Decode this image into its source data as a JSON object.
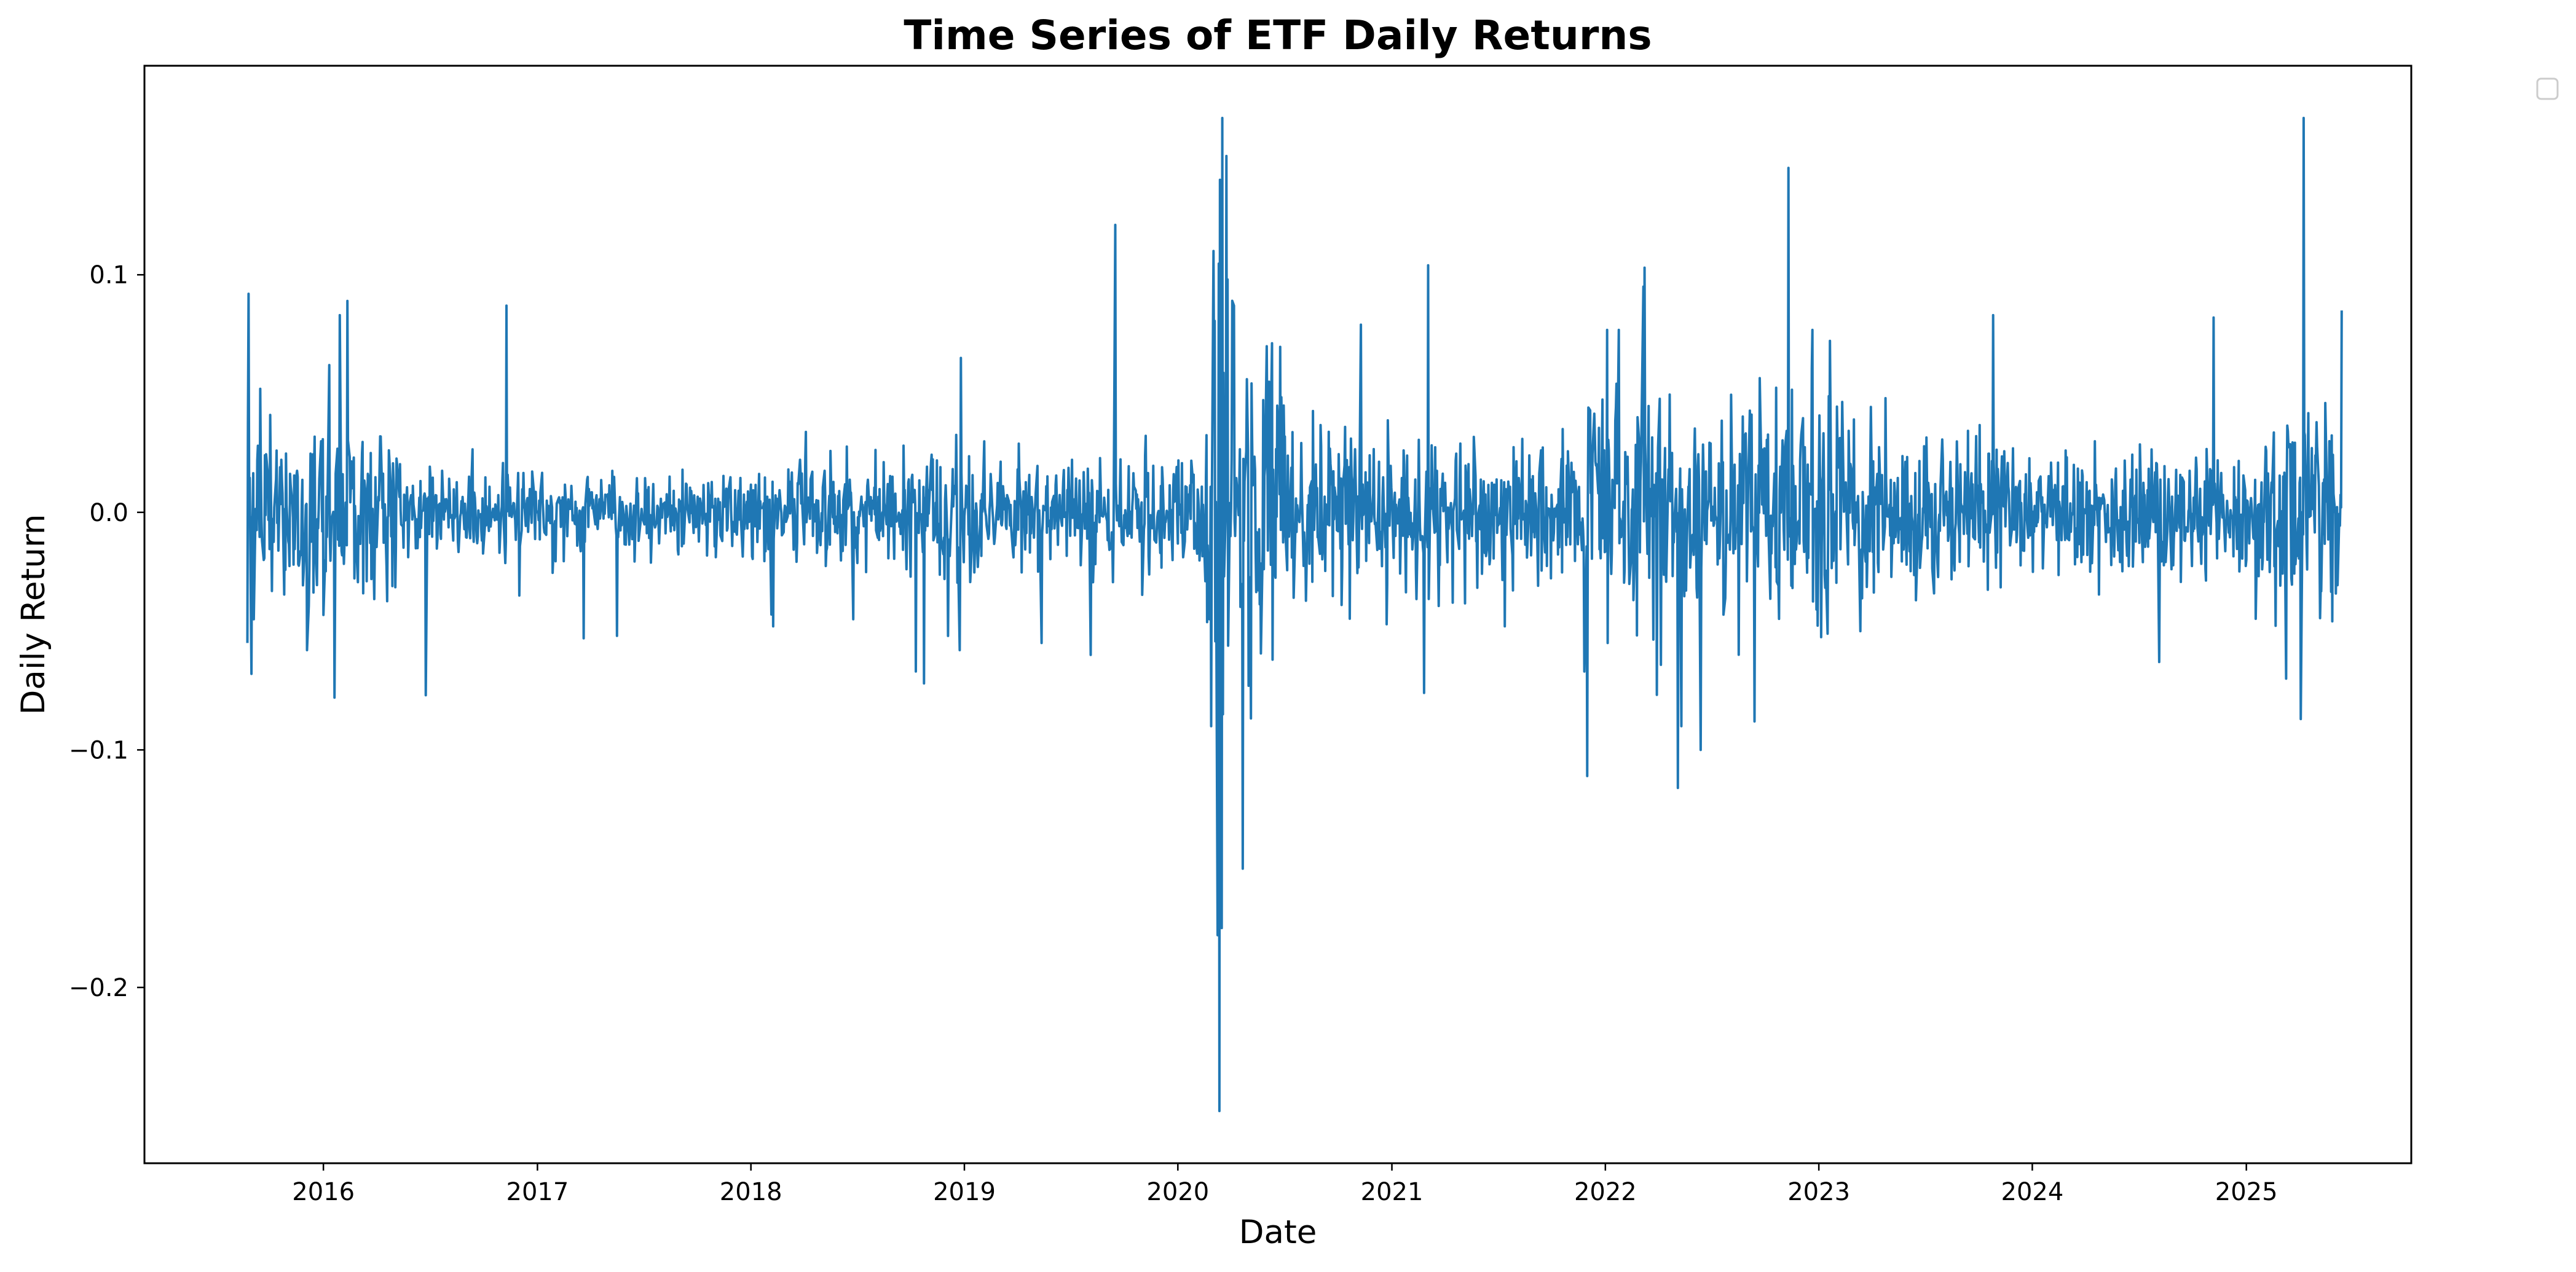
{
  "chart_data": {
    "type": "line",
    "title": "Time Series of ETF Daily Returns",
    "xlabel": "Date",
    "ylabel": "Daily Return",
    "xlim": [
      "2015-03-01",
      "2025-10-10"
    ],
    "ylim": [
      -0.274,
      0.188
    ],
    "x_ticks": [
      "2016",
      "2017",
      "2018",
      "2019",
      "2020",
      "2021",
      "2022",
      "2023",
      "2024",
      "2025"
    ],
    "y_ticks": [
      "0.1",
      "0.0",
      "−0.1",
      "−0.2"
    ],
    "y_tick_values": [
      0.1,
      0.0,
      -0.1,
      -0.2
    ],
    "date_range": [
      "2015-08-24",
      "2025-06-13"
    ],
    "grid": false,
    "legend": {
      "position": "upper-right-outside",
      "entries": []
    },
    "series": [
      {
        "color": "#1f77b4",
        "x": [
          "2015-08-24",
          "2015-08-25",
          "2015-08-26",
          "2015-08-31",
          "2015-09-04",
          "2015-09-15",
          "2015-10-02",
          "2015-12-04",
          "2016-01-11",
          "2016-01-20",
          "2016-01-29",
          "2016-02-11",
          "2016-06-24",
          "2016-11-09",
          "2016-12-01",
          "2017-03-21",
          "2017-05-17",
          "2018-02-05",
          "2018-02-08",
          "2018-06-25",
          "2018-10-10",
          "2018-10-24",
          "2018-12-04",
          "2018-12-24",
          "2018-12-26",
          "2019-05-13",
          "2019-08-05",
          "2019-09-16",
          "2020-02-24",
          "2020-02-27",
          "2020-03-02",
          "2020-03-09",
          "2020-03-12",
          "2020-03-13",
          "2020-03-16",
          "2020-03-17",
          "2020-03-18",
          "2020-03-24",
          "2020-03-26",
          "2020-04-06",
          "2020-04-21",
          "2020-05-01",
          "2020-06-11",
          "2020-11-09",
          "2021-02-25",
          "2021-03-04",
          "2021-11-26",
          "2021-12-01",
          "2022-01-05",
          "2022-03-07",
          "2022-03-09",
          "2022-05-05",
          "2022-05-11",
          "2022-06-13",
          "2022-09-13",
          "2022-11-10",
          "2023-03-13",
          "2023-10-26",
          "2024-08-05",
          "2024-11-06",
          "2025-03-10",
          "2025-04-04",
          "2025-04-09",
          "2025-06-13"
        ],
        "values": [
          -0.055,
          0.038,
          0.092,
          -0.068,
          -0.045,
          0.052,
          0.041,
          -0.058,
          0.062,
          -0.078,
          0.083,
          0.089,
          -0.077,
          0.087,
          -0.035,
          -0.053,
          -0.052,
          -0.043,
          -0.048,
          -0.045,
          -0.067,
          -0.072,
          -0.052,
          -0.058,
          0.065,
          -0.055,
          -0.06,
          0.121,
          -0.045,
          -0.09,
          0.11,
          -0.178,
          -0.252,
          0.14,
          -0.175,
          0.166,
          -0.085,
          0.15,
          0.098,
          0.087,
          -0.15,
          -0.073,
          -0.062,
          0.079,
          -0.076,
          0.104,
          -0.067,
          -0.111,
          -0.055,
          0.095,
          0.103,
          -0.116,
          -0.09,
          -0.1,
          -0.088,
          0.145,
          -0.05,
          0.083,
          -0.063,
          0.082,
          -0.07,
          -0.087,
          0.166,
          0.085
        ]
      }
    ]
  }
}
